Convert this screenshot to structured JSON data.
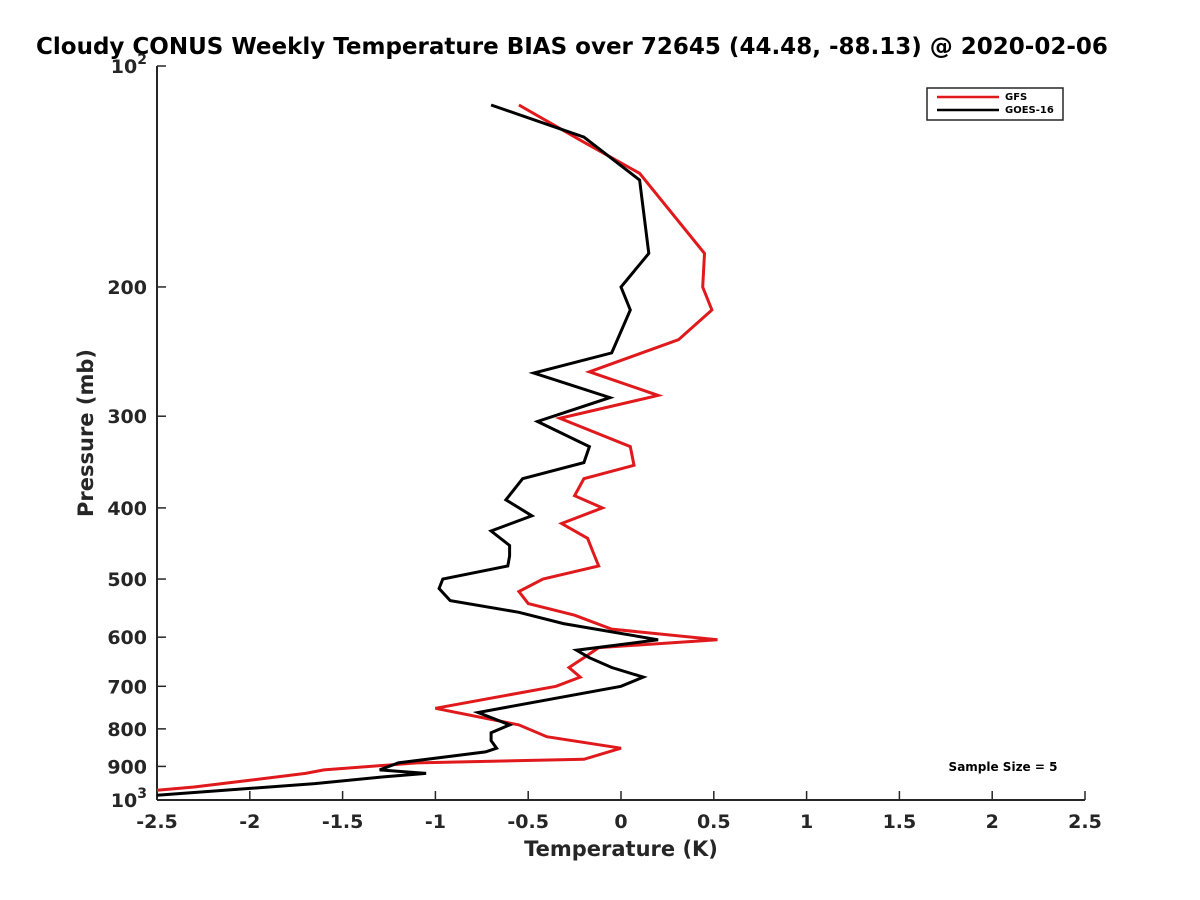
{
  "chart_data": {
    "type": "line",
    "title": "Cloudy CONUS Weekly Temperature BIAS over 72645 (44.48, -88.13) @ 2020-02-06",
    "xlabel": "Temperature (K)",
    "ylabel": "Pressure (mb)",
    "xlim": [
      -2.5,
      2.5
    ],
    "ylim": [
      100,
      1000
    ],
    "y_scale": "log",
    "y_reversed": true,
    "x_ticks": [
      "-2.5",
      "-2",
      "-1.5",
      "-1",
      "-0.5",
      "0",
      "0.5",
      "1",
      "1.5",
      "2",
      "2.5"
    ],
    "y_ticks": [
      {
        "value": 100,
        "base": "10",
        "exp": "2"
      },
      {
        "value": 200,
        "label": "200"
      },
      {
        "value": 300,
        "label": "300"
      },
      {
        "value": 400,
        "label": "400"
      },
      {
        "value": 500,
        "label": "500"
      },
      {
        "value": 600,
        "label": "600"
      },
      {
        "value": 700,
        "label": "700"
      },
      {
        "value": 800,
        "label": "800"
      },
      {
        "value": 900,
        "label": "900"
      },
      {
        "value": 1000,
        "base": "10",
        "exp": "3"
      }
    ],
    "grid": false,
    "legend_position": "top-right",
    "annotation": "Sample Size = 5",
    "series": [
      {
        "name": "GFS",
        "color": "#e0191c",
        "points": [
          [
            -0.55,
            113
          ],
          [
            -0.2,
            127
          ],
          [
            0.1,
            140
          ],
          [
            0.45,
            180
          ],
          [
            0.44,
            200
          ],
          [
            0.49,
            215
          ],
          [
            0.31,
            236
          ],
          [
            -0.17,
            261
          ],
          [
            0.2,
            281
          ],
          [
            -0.33,
            302
          ],
          [
            0.05,
            330
          ],
          [
            0.07,
            350
          ],
          [
            -0.2,
            365
          ],
          [
            -0.25,
            385
          ],
          [
            -0.1,
            400
          ],
          [
            -0.32,
            420
          ],
          [
            -0.18,
            440
          ],
          [
            -0.15,
            460
          ],
          [
            -0.12,
            480
          ],
          [
            -0.42,
            500
          ],
          [
            -0.55,
            520
          ],
          [
            -0.5,
            540
          ],
          [
            -0.25,
            560
          ],
          [
            -0.05,
            585
          ],
          [
            0.52,
            605
          ],
          [
            -0.12,
            620
          ],
          [
            -0.2,
            640
          ],
          [
            -0.28,
            660
          ],
          [
            -0.22,
            680
          ],
          [
            -0.35,
            700
          ],
          [
            -1.0,
            750
          ],
          [
            -0.55,
            790
          ],
          [
            -0.4,
            820
          ],
          [
            0.0,
            850
          ],
          [
            -0.2,
            880
          ],
          [
            -1.1,
            890
          ],
          [
            -1.6,
            910
          ],
          [
            -1.7,
            920
          ],
          [
            -2.0,
            940
          ],
          [
            -2.3,
            960
          ],
          [
            -2.5,
            970
          ]
        ]
      },
      {
        "name": "GOES-16",
        "color": "#000000",
        "points": [
          [
            -0.7,
            113
          ],
          [
            -0.2,
            125
          ],
          [
            0.1,
            143
          ],
          [
            0.15,
            180
          ],
          [
            0.0,
            200
          ],
          [
            0.05,
            215
          ],
          [
            -0.05,
            246
          ],
          [
            -0.47,
            262
          ],
          [
            -0.06,
            283
          ],
          [
            -0.45,
            305
          ],
          [
            -0.17,
            330
          ],
          [
            -0.2,
            347
          ],
          [
            -0.53,
            365
          ],
          [
            -0.62,
            390
          ],
          [
            -0.48,
            410
          ],
          [
            -0.7,
            430
          ],
          [
            -0.6,
            450
          ],
          [
            -0.6,
            465
          ],
          [
            -0.61,
            480
          ],
          [
            -0.96,
            500
          ],
          [
            -0.98,
            515
          ],
          [
            -0.92,
            535
          ],
          [
            -0.55,
            555
          ],
          [
            -0.31,
            575
          ],
          [
            0.2,
            605
          ],
          [
            -0.24,
            625
          ],
          [
            -0.17,
            640
          ],
          [
            -0.05,
            660
          ],
          [
            0.12,
            680
          ],
          [
            0.0,
            700
          ],
          [
            -0.77,
            760
          ],
          [
            -0.6,
            790
          ],
          [
            -0.7,
            810
          ],
          [
            -0.7,
            830
          ],
          [
            -0.67,
            850
          ],
          [
            -0.73,
            860
          ],
          [
            -1.2,
            890
          ],
          [
            -1.3,
            910
          ],
          [
            -1.05,
            920
          ],
          [
            -1.28,
            930
          ],
          [
            -1.65,
            950
          ],
          [
            -2.5,
            985
          ]
        ]
      }
    ]
  }
}
